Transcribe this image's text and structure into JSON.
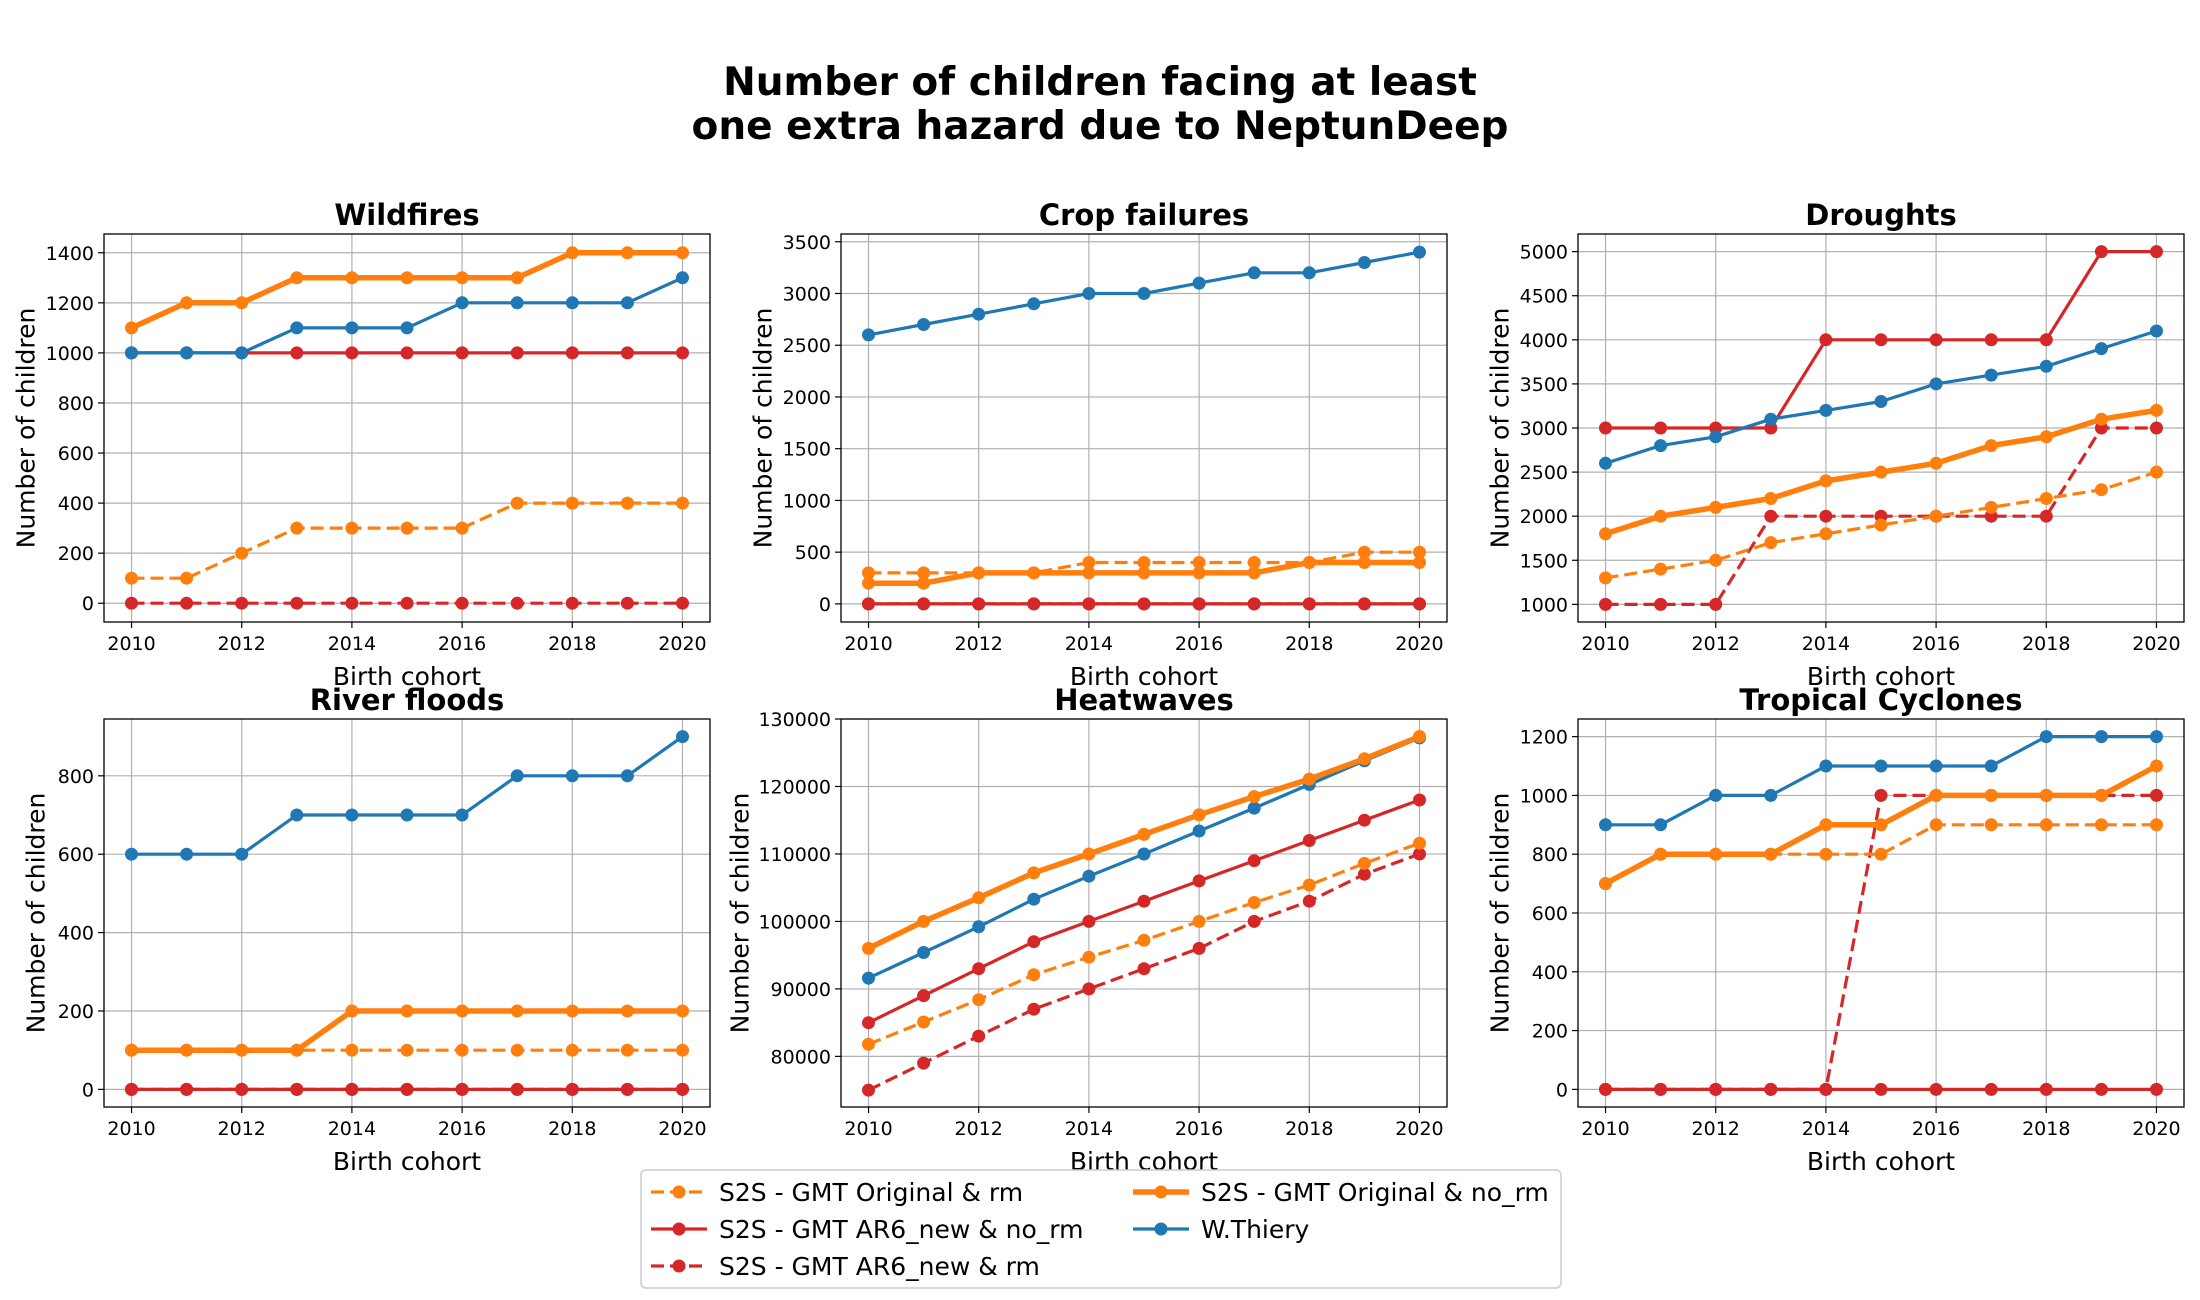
{
  "figure": {
    "title_lines": [
      "Number of children facing at least",
      "one extra hazard due to NeptunDeep"
    ]
  },
  "legend": {
    "position": "bottom-center",
    "entries": [
      {
        "key": "orig_rm",
        "label": "S2S - GMT Original & rm"
      },
      {
        "key": "ar6_norm",
        "label": "S2S - GMT AR6_new & no_rm"
      },
      {
        "key": "ar6_rm",
        "label": "S2S - GMT AR6_new & rm"
      },
      {
        "key": "orig_norm",
        "label": "S2S - GMT Original & no_rm"
      },
      {
        "key": "thiery",
        "label": "W.Thiery"
      }
    ]
  },
  "series_styles": {
    "orig_rm": {
      "color": "#ff7f0e",
      "dash": true,
      "thick": false
    },
    "ar6_norm": {
      "color": "#d62728",
      "dash": false,
      "thick": false
    },
    "ar6_rm": {
      "color": "#d62728",
      "dash": true,
      "thick": false
    },
    "orig_norm": {
      "color": "#ff7f0e",
      "dash": false,
      "thick": true
    },
    "thiery": {
      "color": "#1f77b4",
      "dash": false,
      "thick": false
    }
  },
  "chart_data": [
    {
      "type": "line",
      "title": "Wildfires",
      "xlabel": "Birth cohort",
      "ylabel": "Number of children",
      "x": [
        2010,
        2011,
        2012,
        2013,
        2014,
        2015,
        2016,
        2017,
        2018,
        2019,
        2020
      ],
      "xlim": [
        2009.5,
        2020.5
      ],
      "ylim": [
        -75,
        1475
      ],
      "xticks": [
        2010,
        2012,
        2014,
        2016,
        2018,
        2020
      ],
      "yticks": [
        0,
        200,
        400,
        600,
        800,
        1000,
        1200,
        1400
      ],
      "grid": true,
      "series": [
        {
          "key": "orig_rm",
          "values": [
            100,
            100,
            200,
            300,
            300,
            300,
            300,
            400,
            400,
            400,
            400
          ]
        },
        {
          "key": "ar6_norm",
          "values": [
            1000,
            1000,
            1000,
            1000,
            1000,
            1000,
            1000,
            1000,
            1000,
            1000,
            1000
          ]
        },
        {
          "key": "ar6_rm",
          "values": [
            0,
            0,
            0,
            0,
            0,
            0,
            0,
            0,
            0,
            0,
            0
          ]
        },
        {
          "key": "orig_norm",
          "values": [
            1100,
            1200,
            1200,
            1300,
            1300,
            1300,
            1300,
            1300,
            1400,
            1400,
            1400
          ]
        },
        {
          "key": "thiery",
          "values": [
            1000,
            1000,
            1000,
            1100,
            1100,
            1100,
            1200,
            1200,
            1200,
            1200,
            1300
          ]
        }
      ]
    },
    {
      "type": "line",
      "title": "Crop failures",
      "xlabel": "Birth cohort",
      "ylabel": "Number of children",
      "x": [
        2010,
        2011,
        2012,
        2013,
        2014,
        2015,
        2016,
        2017,
        2018,
        2019,
        2020
      ],
      "xlim": [
        2009.5,
        2020.5
      ],
      "ylim": [
        -175,
        3575
      ],
      "xticks": [
        2010,
        2012,
        2014,
        2016,
        2018,
        2020
      ],
      "yticks": [
        0,
        500,
        1000,
        1500,
        2000,
        2500,
        3000,
        3500
      ],
      "grid": true,
      "series": [
        {
          "key": "orig_rm",
          "values": [
            300,
            300,
            300,
            300,
            400,
            400,
            400,
            400,
            400,
            500,
            500
          ]
        },
        {
          "key": "ar6_norm",
          "values": [
            0,
            0,
            0,
            0,
            0,
            0,
            0,
            0,
            0,
            0,
            0
          ]
        },
        {
          "key": "ar6_rm",
          "values": [
            0,
            0,
            0,
            0,
            0,
            0,
            0,
            0,
            0,
            0,
            0
          ]
        },
        {
          "key": "orig_norm",
          "values": [
            200,
            200,
            300,
            300,
            300,
            300,
            300,
            300,
            400,
            400,
            400
          ]
        },
        {
          "key": "thiery",
          "values": [
            2600,
            2700,
            2800,
            2900,
            3000,
            3000,
            3100,
            3200,
            3200,
            3300,
            3400
          ]
        }
      ]
    },
    {
      "type": "line",
      "title": "Droughts",
      "xlabel": "Birth cohort",
      "ylabel": "Number of children",
      "x": [
        2010,
        2011,
        2012,
        2013,
        2014,
        2015,
        2016,
        2017,
        2018,
        2019,
        2020
      ],
      "xlim": [
        2009.5,
        2020.5
      ],
      "ylim": [
        800,
        5200
      ],
      "xticks": [
        2010,
        2012,
        2014,
        2016,
        2018,
        2020
      ],
      "yticks": [
        1000,
        1500,
        2000,
        2500,
        3000,
        3500,
        4000,
        4500,
        5000
      ],
      "grid": true,
      "series": [
        {
          "key": "orig_rm",
          "values": [
            1300,
            1400,
            1500,
            1700,
            1800,
            1900,
            2000,
            2100,
            2200,
            2300,
            2500
          ]
        },
        {
          "key": "ar6_norm",
          "values": [
            3000,
            3000,
            3000,
            3000,
            4000,
            4000,
            4000,
            4000,
            4000,
            5000,
            5000
          ]
        },
        {
          "key": "ar6_rm",
          "values": [
            1000,
            1000,
            1000,
            2000,
            2000,
            2000,
            2000,
            2000,
            2000,
            3000,
            3000
          ]
        },
        {
          "key": "orig_norm",
          "values": [
            1800,
            2000,
            2100,
            2200,
            2400,
            2500,
            2600,
            2800,
            2900,
            3100,
            3200
          ]
        },
        {
          "key": "thiery",
          "values": [
            2600,
            2800,
            2900,
            3100,
            3200,
            3300,
            3500,
            3600,
            3700,
            3900,
            4100
          ]
        }
      ]
    },
    {
      "type": "line",
      "title": "River floods",
      "xlabel": "Birth cohort",
      "ylabel": "Number of children",
      "x": [
        2010,
        2011,
        2012,
        2013,
        2014,
        2015,
        2016,
        2017,
        2018,
        2019,
        2020
      ],
      "xlim": [
        2009.5,
        2020.5
      ],
      "ylim": [
        -45,
        945
      ],
      "xticks": [
        2010,
        2012,
        2014,
        2016,
        2018,
        2020
      ],
      "yticks": [
        0,
        200,
        400,
        600,
        800
      ],
      "grid": true,
      "series": [
        {
          "key": "orig_rm",
          "values": [
            100,
            100,
            100,
            100,
            100,
            100,
            100,
            100,
            100,
            100,
            100
          ]
        },
        {
          "key": "ar6_norm",
          "values": [
            0,
            0,
            0,
            0,
            0,
            0,
            0,
            0,
            0,
            0,
            0
          ]
        },
        {
          "key": "ar6_rm",
          "values": [
            0,
            0,
            0,
            0,
            0,
            0,
            0,
            0,
            0,
            0,
            0
          ]
        },
        {
          "key": "orig_norm",
          "values": [
            100,
            100,
            100,
            100,
            200,
            200,
            200,
            200,
            200,
            200,
            200
          ]
        },
        {
          "key": "thiery",
          "values": [
            600,
            600,
            600,
            700,
            700,
            700,
            700,
            800,
            800,
            800,
            900
          ]
        }
      ]
    },
    {
      "type": "line",
      "title": "Heatwaves",
      "xlabel": "Birth cohort",
      "ylabel": "Number of children",
      "x": [
        2010,
        2011,
        2012,
        2013,
        2014,
        2015,
        2016,
        2017,
        2018,
        2019,
        2020
      ],
      "xlim": [
        2009.5,
        2020.5
      ],
      "ylim": [
        72500,
        130000
      ],
      "xticks": [
        2010,
        2012,
        2014,
        2016,
        2018,
        2020
      ],
      "yticks": [
        80000,
        90000,
        100000,
        110000,
        120000,
        130000
      ],
      "grid": true,
      "series": [
        {
          "key": "orig_rm",
          "values": [
            81800,
            85100,
            88400,
            92100,
            94700,
            97200,
            100000,
            102800,
            105400,
            108600,
            111600
          ]
        },
        {
          "key": "ar6_norm",
          "values": [
            85000,
            89000,
            93000,
            97000,
            100000,
            103000,
            106000,
            109000,
            112000,
            115000,
            118000
          ]
        },
        {
          "key": "ar6_rm",
          "values": [
            75000,
            79000,
            83000,
            87000,
            90000,
            93000,
            96000,
            100000,
            103000,
            107000,
            110000
          ]
        },
        {
          "key": "orig_norm",
          "values": [
            96000,
            100000,
            103500,
            107200,
            110000,
            112900,
            115800,
            118500,
            121100,
            124100,
            127400
          ]
        },
        {
          "key": "thiery",
          "values": [
            91600,
            95400,
            99200,
            103300,
            106700,
            110000,
            113400,
            116800,
            120300,
            123800,
            127200
          ]
        }
      ]
    },
    {
      "type": "line",
      "title": "Tropical Cyclones",
      "xlabel": "Birth cohort",
      "ylabel": "Number of children",
      "x": [
        2010,
        2011,
        2012,
        2013,
        2014,
        2015,
        2016,
        2017,
        2018,
        2019,
        2020
      ],
      "xlim": [
        2009.5,
        2020.5
      ],
      "ylim": [
        -60,
        1260
      ],
      "xticks": [
        2010,
        2012,
        2014,
        2016,
        2018,
        2020
      ],
      "yticks": [
        0,
        200,
        400,
        600,
        800,
        1000,
        1200
      ],
      "grid": true,
      "series": [
        {
          "key": "orig_rm",
          "values": [
            700,
            800,
            800,
            800,
            800,
            800,
            900,
            900,
            900,
            900,
            900
          ]
        },
        {
          "key": "ar6_norm",
          "values": [
            0,
            0,
            0,
            0,
            0,
            0,
            0,
            0,
            0,
            0,
            0
          ]
        },
        {
          "key": "ar6_rm",
          "values": [
            0,
            0,
            0,
            0,
            0,
            1000,
            1000,
            1000,
            1000,
            1000,
            1000
          ]
        },
        {
          "key": "orig_norm",
          "values": [
            700,
            800,
            800,
            800,
            900,
            900,
            1000,
            1000,
            1000,
            1000,
            1100
          ]
        },
        {
          "key": "thiery",
          "values": [
            900,
            900,
            1000,
            1000,
            1100,
            1100,
            1100,
            1100,
            1200,
            1200,
            1200
          ]
        }
      ]
    }
  ]
}
